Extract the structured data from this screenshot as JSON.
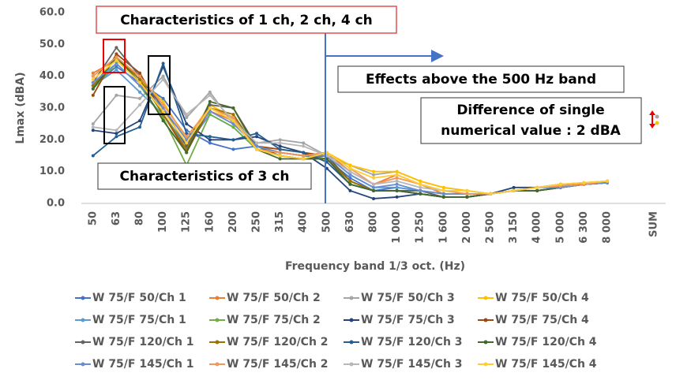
{
  "chart_data": {
    "type": "line",
    "ylabel": "Lmax (dBA)",
    "xlabel": "Frequency band 1/3 oct. (Hz)",
    "annotations": [
      "Characteristics of 1 ch, 2 ch, 4 ch",
      "Effects above the 500 Hz band",
      "Difference of single",
      "numerical value : 2 dBA",
      "Characteristics of 3 ch"
    ],
    "categories": [
      "50",
      "63",
      "80",
      "100",
      "125",
      "160",
      "200",
      "250",
      "315",
      "400",
      "500",
      "630",
      "800",
      "1 000",
      "1 250",
      "1 600",
      "2 000",
      "2 500",
      "3 150",
      "4 000",
      "5 000",
      "6 300",
      "8 000",
      null,
      "SUM"
    ],
    "ylim": [
      0,
      60
    ],
    "yticks": [
      {
        "value": 0,
        "label": "0.0"
      },
      {
        "value": 10,
        "label": "10.0"
      },
      {
        "value": 20,
        "label": "20.0"
      },
      {
        "value": 30,
        "label": "30.0"
      },
      {
        "value": 40,
        "label": "40.0"
      },
      {
        "value": 50,
        "label": "50.0"
      },
      {
        "value": 60,
        "label": "60.0"
      }
    ],
    "series": [
      {
        "name": "W 75/F 50/Ch 1",
        "color": "#4472c4",
        "values": [
          37,
          43,
          38,
          33,
          23,
          19,
          17,
          18,
          16,
          15,
          14,
          8,
          4,
          5,
          4,
          3,
          3,
          3,
          4,
          4,
          5,
          6,
          6.5,
          null,
          null
        ]
      },
      {
        "name": "W 75/F 50/Ch 2",
        "color": "#ed7d31",
        "values": [
          41,
          45,
          40,
          30,
          18,
          29,
          26,
          18,
          16,
          15,
          16,
          10,
          6,
          9,
          6,
          3,
          3,
          3,
          4,
          4,
          5,
          6,
          7,
          null,
          null
        ]
      },
      {
        "name": "W 75/F 50/Ch 3",
        "color": "#a5a5a5",
        "values": [
          25,
          34,
          33,
          40,
          27,
          35,
          25,
          19,
          20,
          19,
          15,
          12,
          9,
          10,
          7,
          5,
          4,
          3,
          4,
          5,
          6,
          6,
          7,
          null,
          null
        ]
      },
      {
        "name": "W 75/F 50/Ch 4",
        "color": "#ffc000",
        "values": [
          40,
          46,
          39,
          32,
          20,
          31,
          27,
          17,
          15,
          14,
          16,
          12,
          10,
          10,
          7,
          5,
          4,
          3,
          4,
          5,
          6,
          6.5,
          7,
          null,
          null
        ]
      },
      {
        "name": "W 75/F 75/Ch 1",
        "color": "#5b9bd5",
        "values": [
          37,
          42,
          35,
          28,
          18,
          28,
          24,
          17,
          16,
          15,
          15,
          9,
          5,
          5,
          4,
          3,
          3,
          3,
          4,
          4,
          5,
          6,
          6.5,
          null,
          null
        ]
      },
      {
        "name": "W 75/F 75/Ch 2",
        "color": "#70ad47",
        "values": [
          36,
          44,
          37,
          27,
          12,
          28,
          24,
          17,
          16,
          15,
          14,
          7,
          4,
          4,
          4,
          3,
          3,
          3,
          4,
          4,
          5,
          6,
          6.5,
          null,
          null
        ]
      },
      {
        "name": "W 75/F 75/Ch 3",
        "color": "#264478",
        "values": [
          23,
          22,
          26,
          43,
          25,
          20,
          20,
          21,
          18,
          16,
          11,
          4,
          1.5,
          2,
          3,
          2,
          2,
          3,
          5,
          5,
          6,
          6,
          6.5,
          null,
          null
        ]
      },
      {
        "name": "W 75/F 75/Ch 4",
        "color": "#9e480e",
        "values": [
          34,
          47,
          41,
          28,
          16,
          30,
          27,
          18,
          17,
          16,
          15,
          7,
          4,
          4,
          3,
          2,
          2,
          3,
          4,
          4,
          5,
          6,
          6.5,
          null,
          null
        ]
      },
      {
        "name": "W 75/F 120/Ch 1",
        "color": "#636363",
        "values": [
          38,
          49,
          40,
          30,
          18,
          31,
          30,
          18,
          15,
          14,
          15,
          7,
          4,
          4,
          4,
          2,
          2,
          3,
          4,
          4,
          5,
          6,
          6.5,
          null,
          null
        ]
      },
      {
        "name": "W 75/F 120/Ch 2",
        "color": "#997300",
        "values": [
          37,
          46,
          39,
          28,
          17,
          30,
          28,
          17,
          15,
          14,
          14,
          7,
          4,
          4,
          3,
          2,
          2,
          3,
          4,
          4,
          5,
          6,
          6.5,
          null,
          null
        ]
      },
      {
        "name": "W 75/F 120/Ch 3",
        "color": "#255e91",
        "values": [
          15,
          21,
          24,
          44,
          22,
          21,
          20,
          22,
          17,
          16,
          13,
          6,
          4,
          4,
          3,
          2,
          2,
          3,
          4,
          4,
          5,
          6,
          6.5,
          null,
          null
        ]
      },
      {
        "name": "W 75/F 120/Ch 4",
        "color": "#43682b",
        "values": [
          36,
          46,
          38,
          26,
          16,
          32,
          30,
          17,
          14,
          14,
          14,
          6,
          4,
          4,
          3,
          2,
          2,
          3,
          4,
          4,
          5,
          6,
          6.5,
          null,
          null
        ]
      },
      {
        "name": "W 75/F 145/Ch 1",
        "color": "#698ed0",
        "values": [
          38,
          44,
          37,
          30,
          20,
          29,
          25,
          18,
          16,
          15,
          15,
          9,
          5,
          6,
          4,
          3,
          3,
          3,
          4,
          5,
          5,
          6,
          6.5,
          null,
          null
        ]
      },
      {
        "name": "W 75/F 145/Ch 2",
        "color": "#f1975a",
        "values": [
          40,
          46,
          40,
          31,
          21,
          30,
          27,
          17,
          16,
          15,
          16,
          11,
          6,
          8,
          6,
          4,
          3,
          3,
          4,
          5,
          5.5,
          6,
          7,
          null,
          null
        ]
      },
      {
        "name": "W 75/F 145/Ch 3",
        "color": "#b7b7b7",
        "values": [
          24,
          23,
          31,
          39,
          28,
          34,
          26,
          19,
          19,
          18,
          15,
          10,
          6,
          7,
          5,
          4,
          4,
          3,
          4,
          5,
          6,
          6.5,
          7,
          null,
          null
        ]
      },
      {
        "name": "W 75/F 145/Ch 4",
        "color": "#ffcd33",
        "values": [
          39,
          45,
          38,
          29,
          19,
          30,
          26,
          17,
          15,
          14,
          16,
          11,
          8,
          9,
          6,
          4,
          4,
          3,
          4,
          5,
          6,
          6.5,
          7,
          null,
          null
        ]
      }
    ]
  }
}
